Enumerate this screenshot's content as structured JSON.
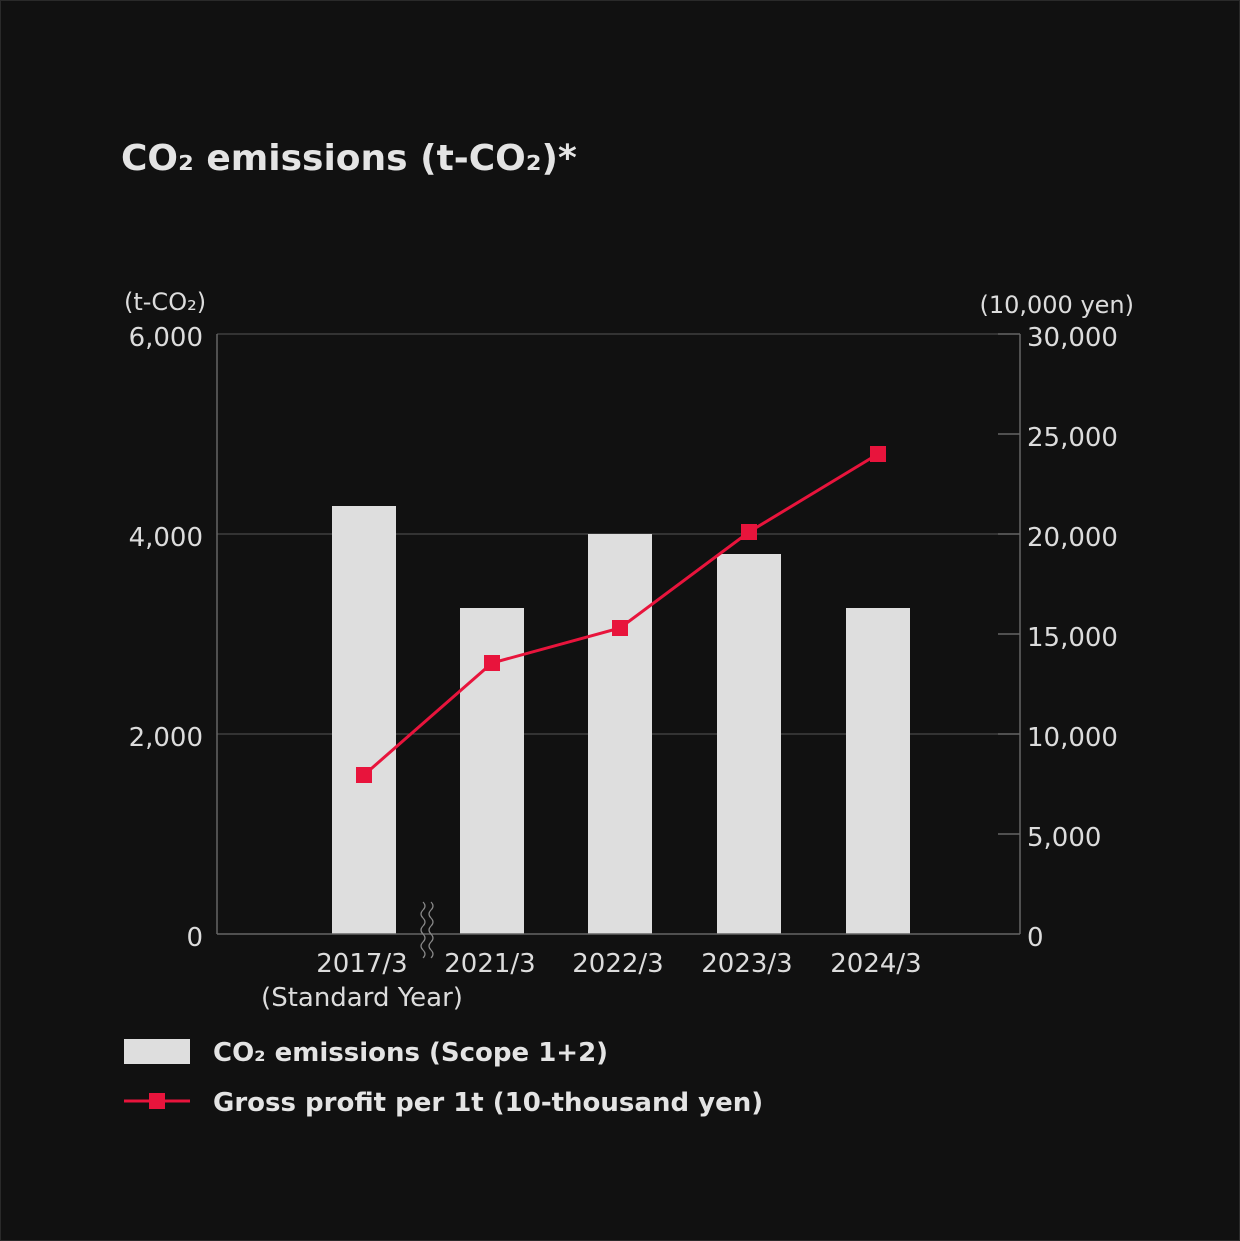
{
  "chart_data": {
    "type": "bar",
    "title": "CO₂ emissions (t-CO₂)*",
    "y_left_unit": "(t-CO₂)",
    "y_right_unit": "(10,000 yen)",
    "categories": [
      "2017/3",
      "2021/3",
      "2022/3",
      "2023/3",
      "2024/3"
    ],
    "category_sublabels": [
      "(Standard Year)",
      "",
      "",
      "",
      ""
    ],
    "axis_break_after_index": 0,
    "y_left_ylim": [
      0,
      6000
    ],
    "y_left_ticks": [
      "0",
      "2,000",
      "4,000",
      "6,000"
    ],
    "y_left_tick_values": [
      0,
      2000,
      4000,
      6000
    ],
    "y_right_ylim": [
      0,
      30000
    ],
    "y_right_ticks": [
      "0",
      "5,000",
      "10,000",
      "15,000",
      "20,000",
      "25,000",
      "30,000"
    ],
    "y_right_tick_values": [
      0,
      5000,
      10000,
      15000,
      20000,
      25000,
      30000
    ],
    "grid": true,
    "legend_position": "bottom-left",
    "series": [
      {
        "name": "CO₂ emissions (Scope 1+2)",
        "type": "bar",
        "axis": "left",
        "color": "#dedede",
        "values": [
          4280,
          3260,
          4000,
          3800,
          3260
        ]
      },
      {
        "name": "Gross profit per 1t (10-thousand yen)",
        "type": "line",
        "axis": "right",
        "color": "#e8143c",
        "values": [
          7950,
          13550,
          15300,
          20100,
          24000
        ]
      }
    ]
  }
}
